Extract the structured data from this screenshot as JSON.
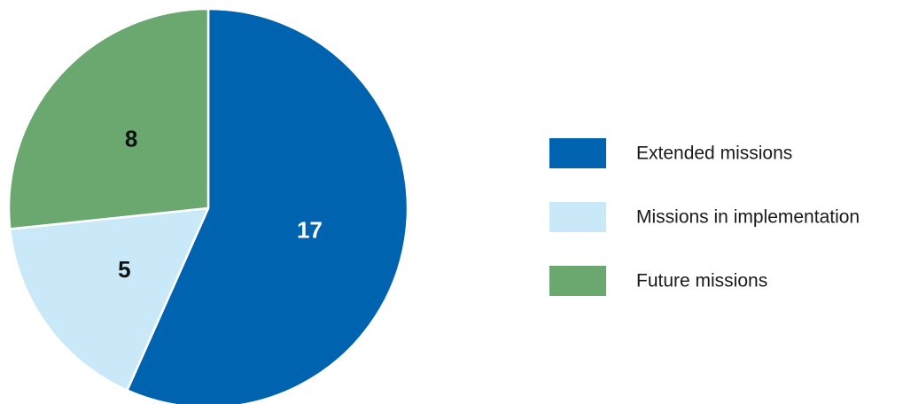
{
  "chart_data": {
    "type": "pie",
    "title": "",
    "slices": [
      {
        "label": "Extended missions",
        "value": 17,
        "color": "#0063b0",
        "label_color": "#ffffff"
      },
      {
        "label": "Missions in implementation",
        "value": 5,
        "color": "#c9e8f8",
        "label_color": "#111111"
      },
      {
        "label": "Future missions",
        "value": 8,
        "color": "#6aa870",
        "label_color": "#111111"
      }
    ],
    "start": "12 o'clock",
    "direction": "clockwise",
    "legend": {
      "position": "right",
      "entries": [
        "Extended missions",
        "Missions in implementation",
        "Future missions"
      ]
    }
  }
}
